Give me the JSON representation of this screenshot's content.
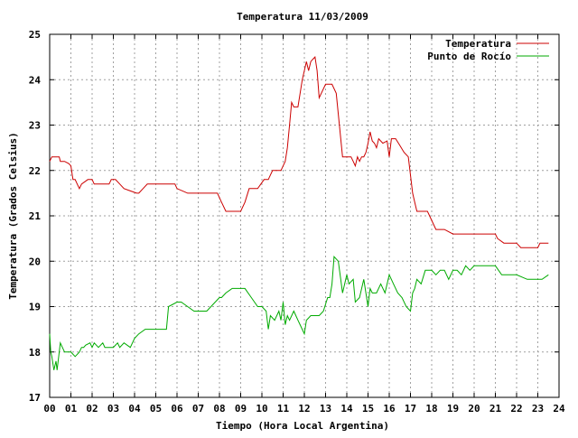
{
  "chart_data": {
    "type": "line",
    "title": "Temperatura 11/03/2009",
    "xlabel": "Tiempo (Hora Local Argentina)",
    "ylabel": "Temperatura (Grados Celsius)",
    "xlim": [
      0,
      24
    ],
    "ylim": [
      17,
      25
    ],
    "x_ticks": [
      0,
      1,
      2,
      3,
      4,
      5,
      6,
      7,
      8,
      9,
      10,
      11,
      12,
      13,
      14,
      15,
      16,
      17,
      18,
      19,
      20,
      21,
      22,
      23,
      24
    ],
    "x_tick_labels": [
      "00",
      "01",
      "02",
      "03",
      "04",
      "05",
      "06",
      "07",
      "08",
      "09",
      "10",
      "11",
      "12",
      "13",
      "14",
      "15",
      "16",
      "17",
      "18",
      "19",
      "20",
      "21",
      "22",
      "23",
      "24"
    ],
    "y_ticks": [
      17,
      18,
      19,
      20,
      21,
      22,
      23,
      24,
      25
    ],
    "grid": true,
    "legend_position": "top-right",
    "series": [
      {
        "name": "Temperatura",
        "color": "#cc0000",
        "x": [
          0.0,
          0.1,
          0.3,
          0.45,
          0.5,
          0.7,
          0.9,
          1.0,
          1.1,
          1.2,
          1.3,
          1.4,
          1.5,
          1.8,
          2.0,
          2.1,
          2.5,
          2.8,
          2.9,
          3.1,
          3.3,
          3.5,
          3.8,
          4.1,
          4.2,
          4.4,
          4.6,
          5.0,
          5.5,
          5.9,
          6.0,
          6.5,
          7.0,
          7.2,
          7.5,
          7.9,
          8.1,
          8.3,
          8.4,
          8.7,
          9.0,
          9.2,
          9.4,
          9.6,
          9.8,
          10.1,
          10.2,
          10.3,
          10.4,
          10.5,
          10.9,
          11.0,
          11.1,
          11.2,
          11.3,
          11.4,
          11.5,
          11.6,
          11.7,
          11.9,
          12.0,
          12.1,
          12.2,
          12.3,
          12.4,
          12.5,
          12.6,
          12.7,
          13.0,
          13.1,
          13.3,
          13.5,
          13.8,
          14.0,
          14.2,
          14.3,
          14.4,
          14.5,
          14.6,
          14.7,
          14.8,
          14.9,
          15.0,
          15.1,
          15.2,
          15.3,
          15.4,
          15.5,
          15.7,
          15.9,
          16.0,
          16.1,
          16.3,
          16.5,
          16.7,
          16.9,
          17.1,
          17.2,
          17.3,
          17.4,
          17.5,
          17.8,
          18.0,
          18.2,
          18.4,
          18.6,
          19.0,
          19.5,
          19.6,
          20.0,
          20.5,
          21.0,
          21.1,
          21.4,
          21.6,
          22.0,
          22.2,
          22.5,
          22.8,
          23.0,
          23.1,
          23.5
        ],
        "y": [
          22.2,
          22.3,
          22.3,
          22.3,
          22.2,
          22.2,
          22.15,
          22.1,
          21.8,
          21.8,
          21.7,
          21.6,
          21.7,
          21.8,
          21.8,
          21.7,
          21.7,
          21.7,
          21.8,
          21.8,
          21.7,
          21.6,
          21.55,
          21.5,
          21.5,
          21.6,
          21.7,
          21.7,
          21.7,
          21.7,
          21.6,
          21.5,
          21.5,
          21.5,
          21.5,
          21.5,
          21.3,
          21.1,
          21.1,
          21.1,
          21.1,
          21.3,
          21.6,
          21.6,
          21.6,
          21.8,
          21.8,
          21.8,
          21.9,
          22.0,
          22.0,
          22.1,
          22.2,
          22.5,
          23.0,
          23.5,
          23.4,
          23.4,
          23.4,
          24.0,
          24.2,
          24.4,
          24.2,
          24.4,
          24.45,
          24.5,
          24.2,
          23.6,
          23.9,
          23.9,
          23.9,
          23.7,
          22.3,
          22.3,
          22.3,
          22.2,
          22.1,
          22.3,
          22.2,
          22.3,
          22.3,
          22.4,
          22.6,
          22.85,
          22.65,
          22.6,
          22.5,
          22.7,
          22.6,
          22.65,
          22.3,
          22.7,
          22.7,
          22.55,
          22.4,
          22.3,
          21.5,
          21.3,
          21.1,
          21.1,
          21.1,
          21.1,
          20.9,
          20.7,
          20.7,
          20.7,
          20.6,
          20.6,
          20.6,
          20.6,
          20.6,
          20.6,
          20.5,
          20.4,
          20.4,
          20.4,
          20.3,
          20.3,
          20.3,
          20.3,
          20.4,
          20.4
        ]
      },
      {
        "name": "Punto de Rocío",
        "color": "#00aa00",
        "x": [
          0.0,
          0.05,
          0.1,
          0.2,
          0.3,
          0.35,
          0.4,
          0.5,
          0.6,
          0.7,
          1.0,
          1.2,
          1.4,
          1.5,
          1.6,
          1.7,
          1.9,
          2.0,
          2.1,
          2.3,
          2.5,
          2.6,
          2.8,
          3.0,
          3.2,
          3.3,
          3.5,
          3.8,
          4.0,
          4.2,
          4.5,
          4.8,
          5.0,
          5.5,
          5.6,
          6.0,
          6.2,
          6.8,
          7.0,
          7.1,
          7.2,
          7.4,
          7.6,
          7.8,
          8.0,
          8.1,
          8.3,
          8.6,
          9.0,
          9.2,
          9.5,
          9.8,
          10.0,
          10.2,
          10.3,
          10.4,
          10.6,
          10.8,
          10.9,
          11.0,
          11.1,
          11.2,
          11.3,
          11.5,
          11.6,
          11.7,
          11.8,
          12.0,
          12.1,
          12.3,
          12.5,
          12.7,
          12.9,
          13.1,
          13.2,
          13.3,
          13.4,
          13.6,
          13.8,
          14.0,
          14.1,
          14.3,
          14.4,
          14.6,
          14.8,
          15.0,
          15.1,
          15.2,
          15.4,
          15.6,
          15.8,
          16.0,
          16.2,
          16.4,
          16.6,
          16.8,
          17.0,
          17.1,
          17.2,
          17.3,
          17.5,
          17.7,
          17.9,
          18.0,
          18.2,
          18.4,
          18.6,
          18.8,
          19.0,
          19.2,
          19.4,
          19.6,
          19.8,
          20.0,
          20.5,
          21.0,
          21.3,
          21.6,
          22.0,
          22.5,
          22.9,
          23.0,
          23.2,
          23.5
        ],
        "y": [
          18.4,
          18.0,
          17.9,
          17.6,
          17.8,
          17.6,
          17.8,
          18.2,
          18.1,
          18.0,
          18.0,
          17.9,
          18.0,
          18.1,
          18.1,
          18.15,
          18.2,
          18.1,
          18.2,
          18.1,
          18.2,
          18.1,
          18.1,
          18.1,
          18.2,
          18.1,
          18.2,
          18.1,
          18.3,
          18.4,
          18.5,
          18.5,
          18.5,
          18.5,
          19.0,
          19.1,
          19.1,
          18.9,
          18.9,
          18.9,
          18.9,
          18.9,
          19.0,
          19.1,
          19.2,
          19.2,
          19.3,
          19.4,
          19.4,
          19.4,
          19.2,
          19.0,
          19.0,
          18.9,
          18.5,
          18.8,
          18.7,
          18.9,
          18.7,
          19.1,
          18.6,
          18.8,
          18.7,
          18.9,
          18.8,
          18.7,
          18.6,
          18.4,
          18.7,
          18.8,
          18.8,
          18.8,
          18.9,
          19.2,
          19.2,
          19.5,
          20.1,
          20.0,
          19.3,
          19.7,
          19.5,
          19.6,
          19.1,
          19.2,
          19.6,
          19.0,
          19.4,
          19.3,
          19.3,
          19.5,
          19.3,
          19.7,
          19.5,
          19.3,
          19.2,
          19.0,
          18.9,
          19.3,
          19.4,
          19.6,
          19.5,
          19.8,
          19.8,
          19.8,
          19.7,
          19.8,
          19.8,
          19.6,
          19.8,
          19.8,
          19.7,
          19.9,
          19.8,
          19.9,
          19.9,
          19.9,
          19.7,
          19.7,
          19.7,
          19.6,
          19.6,
          19.6,
          19.6,
          19.7
        ]
      }
    ]
  }
}
